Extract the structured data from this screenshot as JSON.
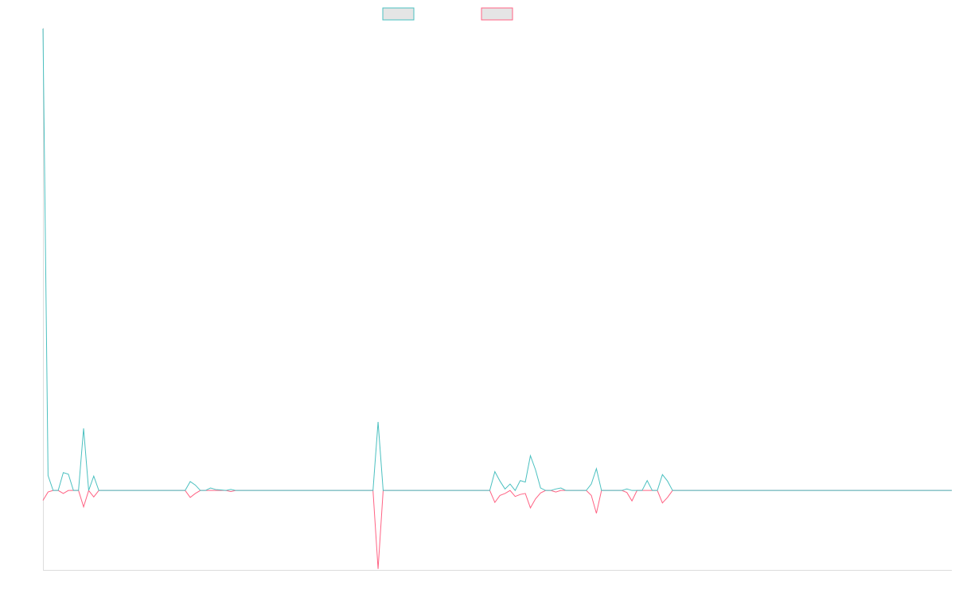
{
  "chart_data": {
    "type": "line",
    "title": "",
    "xlabel": "",
    "ylabel": "",
    "grid": false,
    "legend": "top-center",
    "ylim": [
      -160,
      930
    ],
    "colors": {
      "positive": "#4bc0c0",
      "negative": "#ff6384",
      "legend_fill": "#e5e5e5",
      "axis": "#dddddd"
    },
    "series": [
      {
        "values": [
          930,
          30,
          0,
          0,
          36,
          33,
          0,
          0,
          125,
          0,
          29,
          0,
          0,
          0,
          0,
          0,
          0,
          0,
          0,
          0,
          0,
          0,
          0,
          0,
          0,
          0,
          0,
          0,
          0,
          18,
          11,
          0,
          0,
          5,
          2,
          1,
          0,
          2,
          0,
          0,
          0,
          0,
          0,
          0,
          0,
          0,
          0,
          0,
          0,
          0,
          0,
          0,
          0,
          0,
          0,
          0,
          0,
          0,
          0,
          0,
          0,
          0,
          0,
          0,
          0,
          0,
          138,
          0,
          0,
          0,
          0,
          0,
          0,
          0,
          0,
          0,
          0,
          0,
          0,
          0,
          0,
          0,
          0,
          0,
          0,
          0,
          0,
          0,
          0,
          38,
          19,
          3,
          13,
          0,
          20,
          17,
          70,
          42,
          5,
          0,
          0,
          3,
          5,
          0,
          0,
          0,
          0,
          0,
          13,
          44,
          0,
          0,
          0,
          0,
          0,
          3,
          0,
          0,
          0,
          20,
          0,
          0,
          32,
          19,
          0,
          0,
          0,
          0,
          0,
          0,
          0,
          0,
          0,
          0,
          0,
          0,
          0,
          0,
          0,
          0,
          0,
          0,
          0,
          0,
          0,
          0,
          0,
          0,
          0,
          0,
          0,
          0,
          0,
          0,
          0,
          0,
          0,
          0,
          0,
          0,
          0,
          0,
          0,
          0,
          0,
          0,
          0,
          0,
          0,
          0,
          0,
          0,
          0,
          0,
          0,
          0,
          0,
          0,
          0,
          0
        ]
      },
      {
        "values": [
          -20,
          -3,
          0,
          0,
          -6,
          0,
          0,
          0,
          -33,
          0,
          -13,
          0,
          0,
          0,
          0,
          0,
          0,
          0,
          0,
          0,
          0,
          0,
          0,
          0,
          0,
          0,
          0,
          0,
          0,
          -14,
          -6,
          0,
          0,
          0,
          0,
          0,
          0,
          -2,
          0,
          0,
          0,
          0,
          0,
          0,
          0,
          0,
          0,
          0,
          0,
          0,
          0,
          0,
          0,
          0,
          0,
          0,
          0,
          0,
          0,
          0,
          0,
          0,
          0,
          0,
          0,
          0,
          -158,
          0,
          0,
          0,
          0,
          0,
          0,
          0,
          0,
          0,
          0,
          0,
          0,
          0,
          0,
          0,
          0,
          0,
          0,
          0,
          0,
          0,
          0,
          -24,
          -10,
          -6,
          0,
          -12,
          -8,
          -6,
          -35,
          -17,
          -5,
          0,
          0,
          -3,
          0,
          0,
          0,
          0,
          0,
          0,
          -10,
          -46,
          0,
          0,
          0,
          0,
          0,
          -4,
          -21,
          0,
          0,
          0,
          0,
          0,
          -25,
          -14,
          0,
          0,
          0,
          0,
          0,
          0,
          0,
          0,
          0,
          0,
          0,
          0,
          0,
          0,
          0,
          0,
          0,
          0,
          0,
          0,
          0,
          0,
          0,
          0,
          0,
          0,
          0,
          0,
          0,
          0,
          0,
          0,
          0,
          0,
          0,
          0,
          0,
          0,
          0,
          0,
          0,
          0,
          0,
          0,
          0,
          0,
          0,
          0,
          0,
          0,
          0,
          0,
          0,
          0,
          0,
          0
        ]
      }
    ]
  }
}
